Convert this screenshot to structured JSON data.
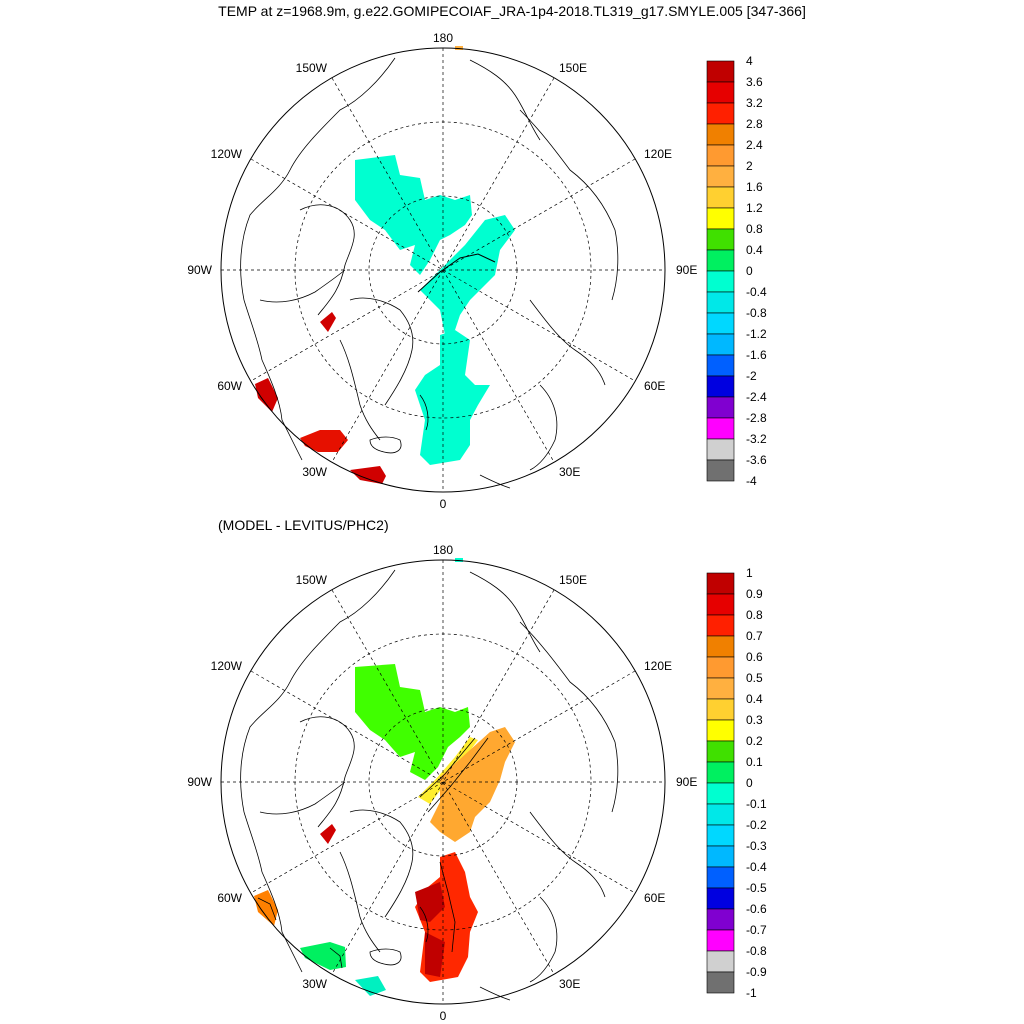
{
  "title": "TEMP at z=1968.9m, g.e22.GOMIPECOIAF_JRA-1p4-2018.TL319_g17.SMYLE.005 [347-366]",
  "subtitle": "(MODEL - LEVITUS/PHC2)",
  "longitude_labels": {
    "n": "180",
    "s": "0",
    "w": "90W",
    "e": "90E",
    "nw1": "150W",
    "nw2": "120W",
    "sw1": "60W",
    "sw2": "30W",
    "ne1": "150E",
    "ne2": "120E",
    "se1": "60E",
    "se2": "30E"
  },
  "colorbar_top": {
    "labels": [
      "4",
      "3.6",
      "3.2",
      "2.8",
      "2.4",
      "2",
      "1.6",
      "1.2",
      "0.8",
      "0.4",
      "0",
      "-0.4",
      "-0.8",
      "-1.2",
      "-1.6",
      "-2",
      "-2.4",
      "-2.8",
      "-3.2",
      "-3.6",
      "-4"
    ],
    "colors": [
      "#c00000",
      "#e60000",
      "#ff2000",
      "#f08000",
      "#ff9a30",
      "#ffb040",
      "#ffd030",
      "#ffff00",
      "#40e000",
      "#00f060",
      "#00ffd0",
      "#00e8e8",
      "#00d8ff",
      "#00b8ff",
      "#0060ff",
      "#0000e0",
      "#8000d0",
      "#ff00ff",
      "#d0d0d0",
      "#707070"
    ]
  },
  "colorbar_bottom": {
    "labels": [
      "1",
      "0.9",
      "0.8",
      "0.7",
      "0.6",
      "0.5",
      "0.4",
      "0.3",
      "0.2",
      "0.1",
      "0",
      "-0.1",
      "-0.2",
      "-0.3",
      "-0.4",
      "-0.5",
      "-0.6",
      "-0.7",
      "-0.8",
      "-0.9",
      "-1"
    ],
    "colors": [
      "#c00000",
      "#e60000",
      "#ff2000",
      "#f08000",
      "#ff9a30",
      "#ffb040",
      "#ffd030",
      "#ffff00",
      "#40e000",
      "#00f060",
      "#00ffd0",
      "#00e8e8",
      "#00d8ff",
      "#00b8ff",
      "#0060ff",
      "#0000e0",
      "#8000d0",
      "#ff00ff",
      "#d0d0d0",
      "#707070"
    ]
  }
}
